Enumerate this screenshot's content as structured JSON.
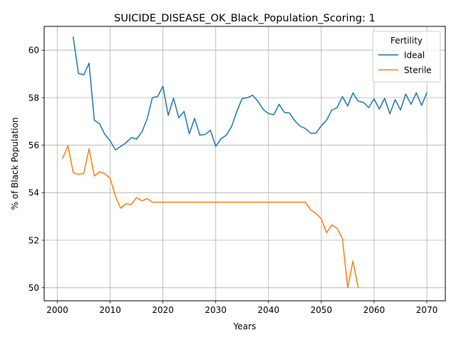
{
  "chart_data": {
    "type": "line",
    "title": "SUICIDE_DISEASE_OK_Black_Population_Scoring: 1",
    "xlabel": "Years",
    "ylabel": "% of Black Population",
    "xlim": [
      1997.5,
      2073.5
    ],
    "ylim": [
      49.45,
      61.0
    ],
    "xticks": [
      2000,
      2010,
      2020,
      2030,
      2040,
      2050,
      2060,
      2070
    ],
    "yticks": [
      50,
      52,
      54,
      56,
      58,
      60
    ],
    "grid": true,
    "legend": {
      "title": "Fertility",
      "placement": "top-right"
    },
    "series": [
      {
        "name": "Ideal",
        "color": "#1f77b4",
        "x": [
          2003,
          2004,
          2005,
          2006,
          2007,
          2008,
          2009,
          2010,
          2011,
          2012,
          2013,
          2014,
          2015,
          2016,
          2017,
          2018,
          2019,
          2020,
          2021,
          2022,
          2023,
          2024,
          2025,
          2026,
          2027,
          2028,
          2029,
          2030,
          2031,
          2032,
          2033,
          2034,
          2035,
          2036,
          2037,
          2038,
          2039,
          2040,
          2041,
          2042,
          2043,
          2044,
          2045,
          2046,
          2047,
          2048,
          2049,
          2050,
          2051,
          2052,
          2053,
          2054,
          2055,
          2056,
          2057,
          2058,
          2059,
          2060,
          2061,
          2062,
          2063,
          2064,
          2065,
          2066,
          2067,
          2068,
          2069,
          2070
        ],
        "y": [
          60.55,
          59.02,
          58.96,
          59.45,
          57.05,
          56.9,
          56.45,
          56.18,
          55.8,
          55.95,
          56.1,
          56.32,
          56.26,
          56.55,
          57.1,
          58.0,
          58.05,
          58.48,
          57.25,
          57.98,
          57.15,
          57.42,
          56.48,
          57.13,
          56.42,
          56.45,
          56.63,
          55.95,
          56.27,
          56.42,
          56.78,
          57.42,
          57.96,
          58.0,
          58.1,
          57.85,
          57.5,
          57.33,
          57.28,
          57.72,
          57.38,
          57.35,
          57.02,
          56.8,
          56.7,
          56.5,
          56.5,
          56.82,
          57.05,
          57.48,
          57.58,
          58.05,
          57.65,
          58.2,
          57.85,
          57.8,
          57.58,
          57.95,
          57.52,
          57.97,
          57.32,
          57.92,
          57.48,
          58.15,
          57.72,
          58.2,
          57.68,
          58.2
        ]
      },
      {
        "name": "Sterile",
        "color": "#ff7f0e",
        "x": [
          2001,
          2002,
          2003,
          2004,
          2005,
          2006,
          2007,
          2008,
          2009,
          2010,
          2011,
          2012,
          2013,
          2014,
          2015,
          2016,
          2017,
          2018,
          2019,
          2020,
          2021,
          2022,
          2023,
          2024,
          2025,
          2026,
          2027,
          2028,
          2029,
          2030,
          2031,
          2032,
          2033,
          2034,
          2035,
          2036,
          2037,
          2038,
          2039,
          2040,
          2041,
          2042,
          2043,
          2044,
          2045,
          2046,
          2047,
          2048,
          2049,
          2050,
          2051,
          2052,
          2053,
          2054,
          2055,
          2056,
          2057
        ],
        "y": [
          55.45,
          55.98,
          54.85,
          54.77,
          54.81,
          55.85,
          54.7,
          54.88,
          54.8,
          54.6,
          53.85,
          53.35,
          53.53,
          53.5,
          53.8,
          53.66,
          53.75,
          53.6,
          53.6,
          53.6,
          53.6,
          53.6,
          53.6,
          53.6,
          53.6,
          53.6,
          53.6,
          53.6,
          53.6,
          53.6,
          53.6,
          53.6,
          53.6,
          53.6,
          53.6,
          53.6,
          53.6,
          53.6,
          53.6,
          53.6,
          53.6,
          53.6,
          53.6,
          53.6,
          53.6,
          53.6,
          53.6,
          53.27,
          53.13,
          52.9,
          52.32,
          52.65,
          52.5,
          52.08,
          50.0,
          51.12,
          50.0
        ]
      }
    ]
  }
}
